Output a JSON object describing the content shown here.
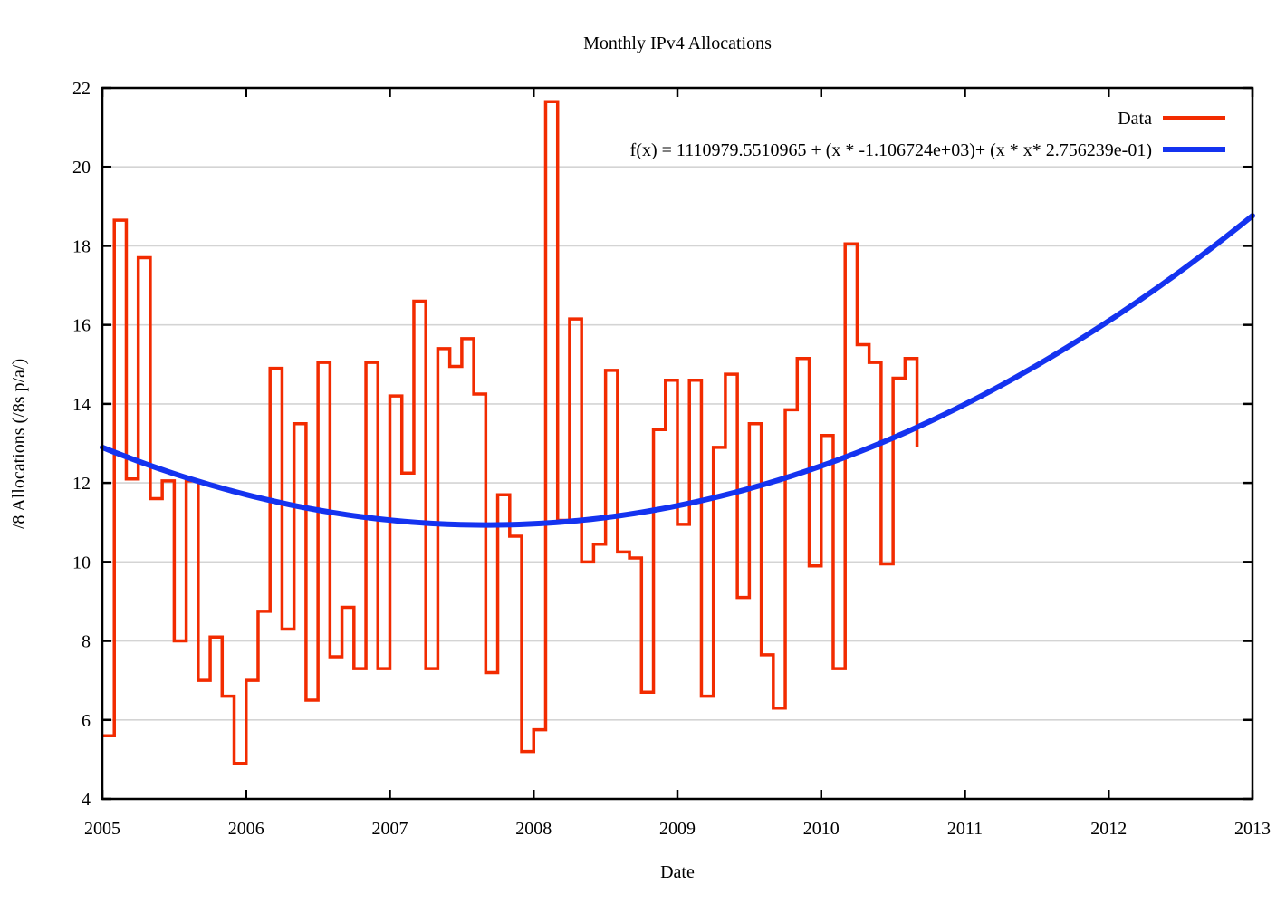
{
  "title": "Monthly IPv4 Allocations",
  "axes": {
    "x_label": "Date",
    "y_label": "/8 Allocations (/8s p/a/)",
    "x_ticks": [
      2005,
      2006,
      2007,
      2008,
      2009,
      2010,
      2011,
      2012,
      2013
    ],
    "y_ticks": [
      4,
      6,
      8,
      10,
      12,
      14,
      16,
      18,
      20,
      22
    ],
    "x_range": [
      2005,
      2013
    ],
    "y_range": [
      4,
      22
    ]
  },
  "legend": {
    "data_label": "Data",
    "fit_label": "f(x) = 1110979.5510965 + (x * -1.106724e+03)+ (x * x* 2.756239e-01)"
  },
  "colors": {
    "data_series": "#f22b00",
    "fit_series": "#1433f0",
    "grid": "#d4d4d4",
    "axis": "#000000"
  },
  "chart_data": {
    "type": "line",
    "title": "Monthly IPv4 Allocations",
    "xlabel": "Date",
    "ylabel": "/8 Allocations (/8s p/a/)",
    "xlim": [
      2005,
      2013
    ],
    "ylim": [
      4,
      22
    ],
    "grid": "horizontal-only",
    "legend_position": "top-right-inside",
    "series": [
      {
        "name": "Data",
        "style": "steps",
        "color": "#f22b00",
        "start_month": "2005-01",
        "end_month": "2010-09",
        "x_step": "1 month",
        "values": [
          5.6,
          18.65,
          12.1,
          17.7,
          11.6,
          12.05,
          8.0,
          12.05,
          7.0,
          8.1,
          6.6,
          4.9,
          7.0,
          8.75,
          14.9,
          8.3,
          13.5,
          6.5,
          15.05,
          7.6,
          8.85,
          7.3,
          15.05,
          7.3,
          14.2,
          12.25,
          16.6,
          7.3,
          15.4,
          14.95,
          15.65,
          14.25,
          7.2,
          11.7,
          10.65,
          5.2,
          5.75,
          21.65,
          11.05,
          16.15,
          10.0,
          10.45,
          14.85,
          10.25,
          10.1,
          6.7,
          13.35,
          14.6,
          10.95,
          14.6,
          6.6,
          12.9,
          14.75,
          9.1,
          13.5,
          7.65,
          6.3,
          13.85,
          15.15,
          9.9,
          13.2,
          7.3,
          18.05,
          15.5,
          15.05,
          9.95,
          14.65,
          15.15,
          12.9
        ]
      },
      {
        "name": "f(x) = 1110979.5510965 + (x * -1.106724e+03)+ (x * x* 2.756239e-01)",
        "style": "quadratic-curve",
        "color": "#1433f0",
        "coefficients": {
          "c": 1110979.5510965,
          "b": -1106.724,
          "a": 0.2756239
        },
        "x_domain": [
          2005,
          2013
        ]
      }
    ]
  }
}
